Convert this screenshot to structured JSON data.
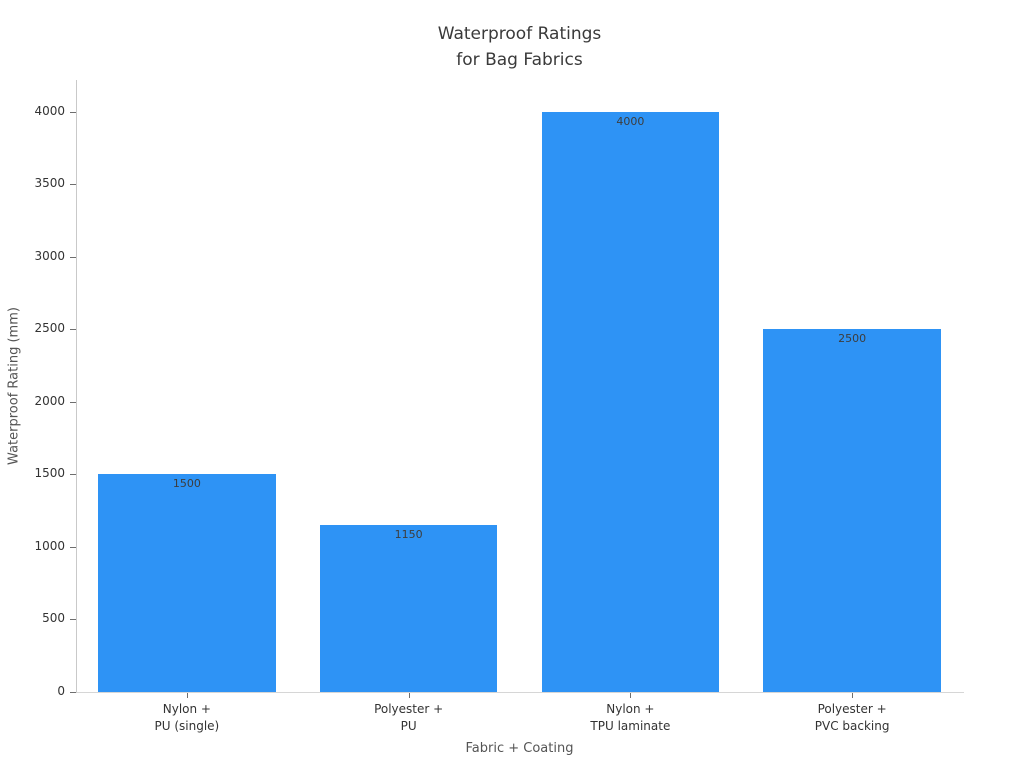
{
  "chart_data": {
    "type": "bar",
    "title": "Waterproof Ratings\nfor Bag Fabrics",
    "xlabel": "Fabric + Coating",
    "ylabel": "Waterproof Rating (mm)",
    "categories": [
      "Nylon +\nPU (single)",
      "Polyester +\nPU",
      "Nylon +\nTPU laminate",
      "Polyester +\nPVC backing"
    ],
    "values": [
      1500,
      1150,
      4000,
      2500
    ],
    "bar_value_labels": [
      "1500",
      "1150",
      "4000",
      "2500"
    ],
    "yticks": [
      0,
      500,
      1000,
      1500,
      2000,
      2500,
      3000,
      3500,
      4000
    ],
    "ytick_labels": [
      "0",
      "500",
      "1000",
      "1500",
      "2000",
      "2500",
      "3000",
      "3500",
      "4000"
    ],
    "ylim": [
      0,
      4220
    ],
    "bar_color": "#2e93f5",
    "grid": false,
    "legend": null,
    "background_color": "#ffffff"
  }
}
